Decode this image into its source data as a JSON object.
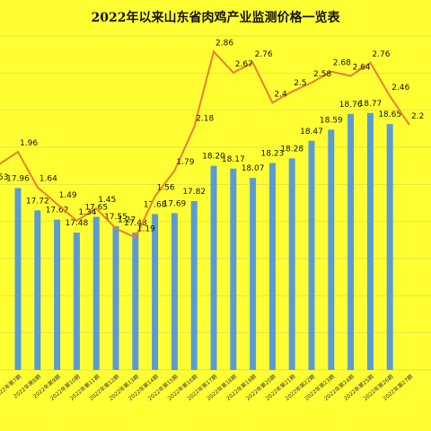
{
  "chart_data": {
    "type": "bar+line",
    "title": "2022年以来山东省肉鸡产业监测价格一览表",
    "categories": [
      "2022年第7期",
      "2022年第8期",
      "2022年第9期",
      "2022年第10期",
      "2022年第11期",
      "2022年第12期",
      "2022年第13期",
      "2022年第14期",
      "2022年第15期",
      "2022年第16期",
      "2022年第17期",
      "2022年第18期",
      "2022年第19期",
      "2022年第20期",
      "2022年第21期",
      "2022年第22期",
      "2022年第23期",
      "2022年第24期",
      "2022年第25期",
      "2022年第26期",
      "2022年第27期"
    ],
    "series": [
      {
        "type": "bar",
        "values": [
          17.96,
          17.72,
          17.62,
          17.48,
          17.65,
          17.55,
          17.48,
          17.68,
          17.69,
          17.82,
          18.2,
          18.17,
          18.07,
          18.23,
          18.28,
          18.47,
          18.59,
          18.76,
          18.77,
          18.65,
          null
        ],
        "color": "#5B9BD5"
      },
      {
        "type": "line",
        "values": [
          1.96,
          1.64,
          1.49,
          1.34,
          1.45,
          1.27,
          1.19,
          1.56,
          1.79,
          2.18,
          2.86,
          2.67,
          2.76,
          2.4,
          2.5,
          2.58,
          2.68,
          2.64,
          2.76,
          2.46,
          2.2
        ],
        "color": "#ED7D31"
      }
    ],
    "edge_label_left": "53",
    "bar_ylim": [
      16.0,
      19.6
    ],
    "line_ylim": [
      0.0,
      3.0
    ],
    "grid": true
  }
}
